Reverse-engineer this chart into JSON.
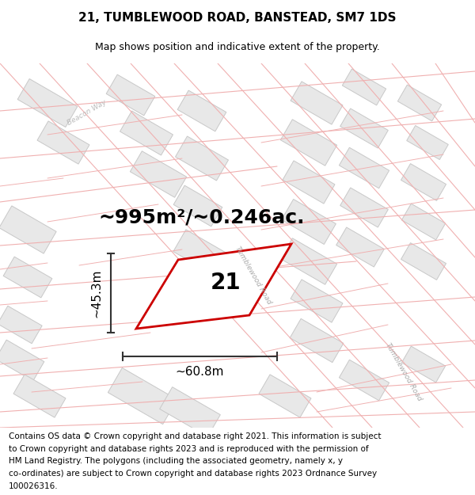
{
  "title": "21, TUMBLEWOOD ROAD, BANSTEAD, SM7 1DS",
  "subtitle": "Map shows position and indicative extent of the property.",
  "area_label": "~995m²/~0.246ac.",
  "plot_number": "21",
  "width_label": "~60.8m",
  "height_label": "~45.3m",
  "road_label_1": "Tumblewood Road",
  "road_label_2": "Tumblewood Road",
  "road_label_3": "Beacon Way",
  "footer_lines": [
    "Contains OS data © Crown copyright and database right 2021. This information is subject",
    "to Crown copyright and database rights 2023 and is reproduced with the permission of",
    "HM Land Registry. The polygons (including the associated geometry, namely x, y",
    "co-ordinates) are subject to Crown copyright and database rights 2023 Ordnance Survey",
    "100026316."
  ],
  "map_bg": "#ffffff",
  "cadastral_line_color": "#f0b0b0",
  "building_fill": "#e8e8e8",
  "building_edge": "#c8c8c8",
  "plot_outline": "#cc0000",
  "plot_fill": "#ffffff",
  "dim_color": "#333333",
  "road_label_color": "#aaaaaa",
  "beacon_label_color": "#bbbbbb",
  "title_fontsize": 11,
  "subtitle_fontsize": 9,
  "area_fontsize": 18,
  "plot_num_fontsize": 20,
  "dim_label_fontsize": 11,
  "footer_fontsize": 7.5,
  "cad_lw": 0.8
}
